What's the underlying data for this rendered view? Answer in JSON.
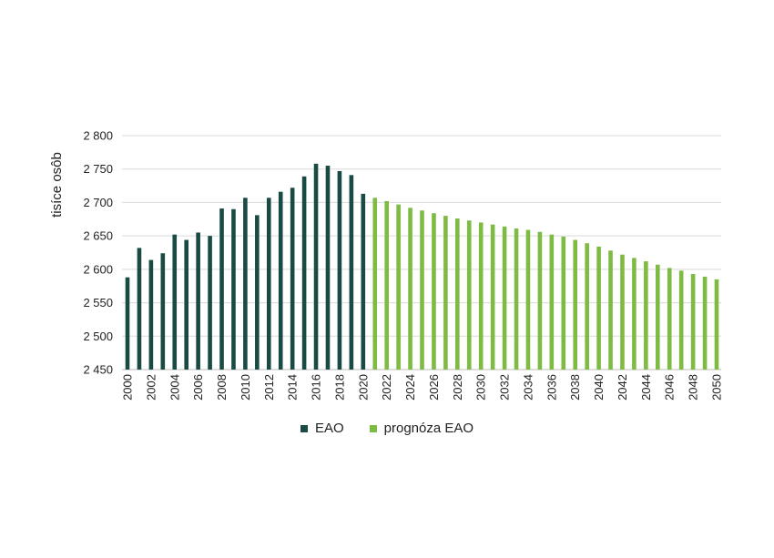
{
  "chart_data": {
    "type": "bar",
    "ylabel": "tisíce osôb",
    "xlabel": "",
    "ylim": [
      2450,
      2800
    ],
    "yticks": [
      2450,
      2500,
      2550,
      2600,
      2650,
      2700,
      2750,
      2800
    ],
    "ytick_labels": [
      "2 450",
      "2 500",
      "2 550",
      "2 600",
      "2 650",
      "2 700",
      "2 750",
      "2 800"
    ],
    "grid": true,
    "legend_position": "bottom",
    "x": [
      2000,
      2001,
      2002,
      2003,
      2004,
      2005,
      2006,
      2007,
      2008,
      2009,
      2010,
      2011,
      2012,
      2013,
      2014,
      2015,
      2016,
      2017,
      2018,
      2019,
      2020,
      2021,
      2022,
      2023,
      2024,
      2025,
      2026,
      2027,
      2028,
      2029,
      2030,
      2031,
      2032,
      2033,
      2034,
      2035,
      2036,
      2037,
      2038,
      2039,
      2040,
      2041,
      2042,
      2043,
      2044,
      2045,
      2046,
      2047,
      2048,
      2049,
      2050
    ],
    "xtick_labels": [
      "2000",
      "2002",
      "2004",
      "2006",
      "2008",
      "2010",
      "2012",
      "2014",
      "2016",
      "2018",
      "2020",
      "2022",
      "2024",
      "2026",
      "2028",
      "2030",
      "2032",
      "2034",
      "2036",
      "2038",
      "2040",
      "2042",
      "2044",
      "2046",
      "2048",
      "2050"
    ],
    "series": [
      {
        "name": "EAO",
        "color": "#1a4a44",
        "x": [
          2000,
          2001,
          2002,
          2003,
          2004,
          2005,
          2006,
          2007,
          2008,
          2009,
          2010,
          2011,
          2012,
          2013,
          2014,
          2015,
          2016,
          2017,
          2018,
          2019,
          2020
        ],
        "values": [
          2588,
          2632,
          2614,
          2624,
          2652,
          2644,
          2655,
          2650,
          2691,
          2690,
          2707,
          2681,
          2707,
          2716,
          2722,
          2739,
          2758,
          2755,
          2747,
          2741,
          2713
        ]
      },
      {
        "name": "prognóza EAO",
        "color": "#7dbb42",
        "x": [
          2021,
          2022,
          2023,
          2024,
          2025,
          2026,
          2027,
          2028,
          2029,
          2030,
          2031,
          2032,
          2033,
          2034,
          2035,
          2036,
          2037,
          2038,
          2039,
          2040,
          2041,
          2042,
          2043,
          2044,
          2045,
          2046,
          2047,
          2048,
          2049,
          2050
        ],
        "values": [
          2707,
          2702,
          2697,
          2692,
          2688,
          2684,
          2680,
          2676,
          2673,
          2670,
          2667,
          2664,
          2661,
          2659,
          2656,
          2652,
          2649,
          2644,
          2639,
          2634,
          2628,
          2622,
          2617,
          2612,
          2607,
          2602,
          2598,
          2593,
          2589,
          2585
        ]
      }
    ]
  }
}
